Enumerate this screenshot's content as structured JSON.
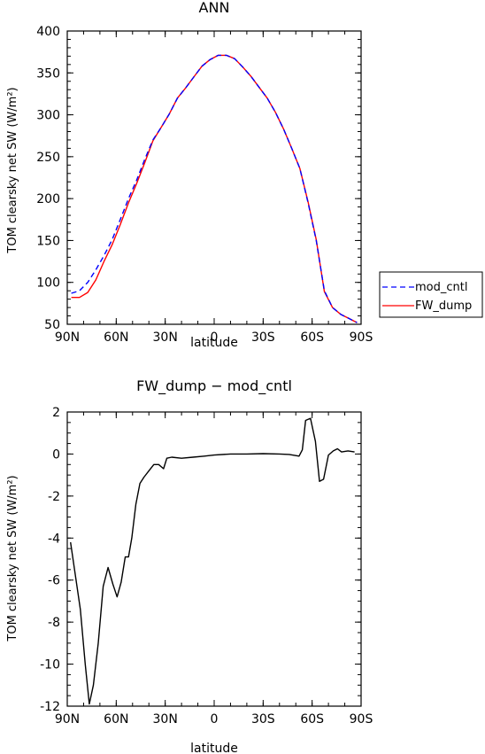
{
  "chart_data": [
    {
      "type": "line",
      "title": "ANN",
      "xlabel": "latitude",
      "ylabel": "TOM clearsky net SW (W/m²)",
      "x_ticks": [
        {
          "lat": 90,
          "label": "90N"
        },
        {
          "lat": 60,
          "label": "60N"
        },
        {
          "lat": 30,
          "label": "30N"
        },
        {
          "lat": 0,
          "label": "0"
        },
        {
          "lat": -30,
          "label": "30S"
        },
        {
          "lat": -60,
          "label": "60S"
        },
        {
          "lat": -90,
          "label": "90S"
        }
      ],
      "xlim": [
        90,
        -90
      ],
      "ylim": [
        50,
        400
      ],
      "y_ticks": [
        50,
        100,
        150,
        200,
        250,
        300,
        350,
        400
      ],
      "grid": false,
      "legend_position": "right",
      "series": [
        {
          "name": "mod_cntl",
          "color": "#0000ff",
          "dash": "dashed",
          "points": [
            [
              87.5,
              87
            ],
            [
              82.5,
              90
            ],
            [
              77.5,
              100
            ],
            [
              72.5,
              115
            ],
            [
              67.5,
              132
            ],
            [
              62.5,
              151
            ],
            [
              57.5,
              175
            ],
            [
              52.5,
              200
            ],
            [
              47.5,
              222
            ],
            [
              42.5,
              247
            ],
            [
              37.5,
              270
            ],
            [
              32.5,
              285
            ],
            [
              27.5,
              301
            ],
            [
              22.5,
              320
            ],
            [
              17.5,
              332
            ],
            [
              12.5,
              345
            ],
            [
              7.5,
              358
            ],
            [
              2.5,
              366
            ],
            [
              -2.5,
              371
            ],
            [
              -7.5,
              371
            ],
            [
              -12.5,
              367
            ],
            [
              -17.5,
              357
            ],
            [
              -22.5,
              346
            ],
            [
              -27.5,
              333
            ],
            [
              -32.5,
              320
            ],
            [
              -37.5,
              303
            ],
            [
              -42.5,
              283
            ],
            [
              -47.5,
              260
            ],
            [
              -52.5,
              236
            ],
            [
              -57.5,
              195
            ],
            [
              -62.5,
              150
            ],
            [
              -67.5,
              90
            ],
            [
              -72.5,
              70
            ],
            [
              -77.5,
              62
            ],
            [
              -82.5,
              57
            ],
            [
              -87.5,
              52
            ]
          ]
        },
        {
          "name": "FW_dump",
          "color": "#ff0000",
          "dash": "solid",
          "points": [
            [
              87.5,
              82
            ],
            [
              82.5,
              82
            ],
            [
              77.5,
              88
            ],
            [
              72.5,
              103
            ],
            [
              67.5,
              125
            ],
            [
              62.5,
              145
            ],
            [
              57.5,
              169
            ],
            [
              52.5,
              195
            ],
            [
              47.5,
              218
            ],
            [
              42.5,
              243
            ],
            [
              37.5,
              269
            ],
            [
              32.5,
              285
            ],
            [
              27.5,
              301
            ],
            [
              22.5,
              320
            ],
            [
              17.5,
              332
            ],
            [
              12.5,
              345
            ],
            [
              7.5,
              358
            ],
            [
              2.5,
              366
            ],
            [
              -2.5,
              371
            ],
            [
              -7.5,
              371
            ],
            [
              -12.5,
              367
            ],
            [
              -17.5,
              357
            ],
            [
              -22.5,
              346
            ],
            [
              -27.5,
              333
            ],
            [
              -32.5,
              320
            ],
            [
              -37.5,
              303
            ],
            [
              -42.5,
              283
            ],
            [
              -47.5,
              260
            ],
            [
              -52.5,
              236
            ],
            [
              -57.5,
              196
            ],
            [
              -62.5,
              151
            ],
            [
              -67.5,
              89
            ],
            [
              -72.5,
              70
            ],
            [
              -77.5,
              62
            ],
            [
              -82.5,
              57
            ],
            [
              -87.5,
              52
            ]
          ]
        }
      ]
    },
    {
      "type": "line",
      "title": "FW_dump − mod_cntl",
      "xlabel": "latitude",
      "ylabel": "TOM clearsky net SW (W/m²)",
      "x_ticks": [
        {
          "lat": 90,
          "label": "90N"
        },
        {
          "lat": 60,
          "label": "60N"
        },
        {
          "lat": 30,
          "label": "30N"
        },
        {
          "lat": 0,
          "label": "0"
        },
        {
          "lat": -30,
          "label": "30S"
        },
        {
          "lat": -60,
          "label": "60S"
        },
        {
          "lat": -90,
          "label": "90S"
        }
      ],
      "xlim": [
        90,
        -90
      ],
      "ylim": [
        -12,
        2
      ],
      "y_ticks": [
        -12,
        -10,
        -8,
        -6,
        -4,
        -2,
        0,
        2
      ],
      "grid": false,
      "series": [
        {
          "color": "#000000",
          "dash": "solid",
          "points": [
            [
              88,
              -4.2
            ],
            [
              82,
              -7.4
            ],
            [
              79,
              -10.0
            ],
            [
              76.5,
              -11.9
            ],
            [
              74,
              -11.0
            ],
            [
              71,
              -9.0
            ],
            [
              68,
              -6.3
            ],
            [
              65,
              -5.4
            ],
            [
              62,
              -6.2
            ],
            [
              59.5,
              -6.8
            ],
            [
              57,
              -6.1
            ],
            [
              54.5,
              -4.9
            ],
            [
              52.5,
              -4.9
            ],
            [
              50.5,
              -4.0
            ],
            [
              48,
              -2.4
            ],
            [
              45.5,
              -1.4
            ],
            [
              43,
              -1.1
            ],
            [
              40,
              -0.8
            ],
            [
              37,
              -0.5
            ],
            [
              34,
              -0.5
            ],
            [
              31,
              -0.7
            ],
            [
              29,
              -0.2
            ],
            [
              26,
              -0.15
            ],
            [
              20,
              -0.2
            ],
            [
              13,
              -0.15
            ],
            [
              6,
              -0.1
            ],
            [
              0,
              -0.05
            ],
            [
              -10,
              0.0
            ],
            [
              -20,
              0.0
            ],
            [
              -30,
              0.02
            ],
            [
              -40,
              0.0
            ],
            [
              -46,
              -0.02
            ],
            [
              -52,
              -0.1
            ],
            [
              -54,
              0.2
            ],
            [
              -56,
              1.6
            ],
            [
              -59,
              1.7
            ],
            [
              -62,
              0.6
            ],
            [
              -64.5,
              -1.3
            ],
            [
              -67,
              -1.2
            ],
            [
              -70,
              -0.05
            ],
            [
              -73,
              0.15
            ],
            [
              -75.5,
              0.25
            ],
            [
              -78,
              0.1
            ],
            [
              -82,
              0.15
            ],
            [
              -86,
              0.1
            ]
          ]
        }
      ]
    }
  ]
}
